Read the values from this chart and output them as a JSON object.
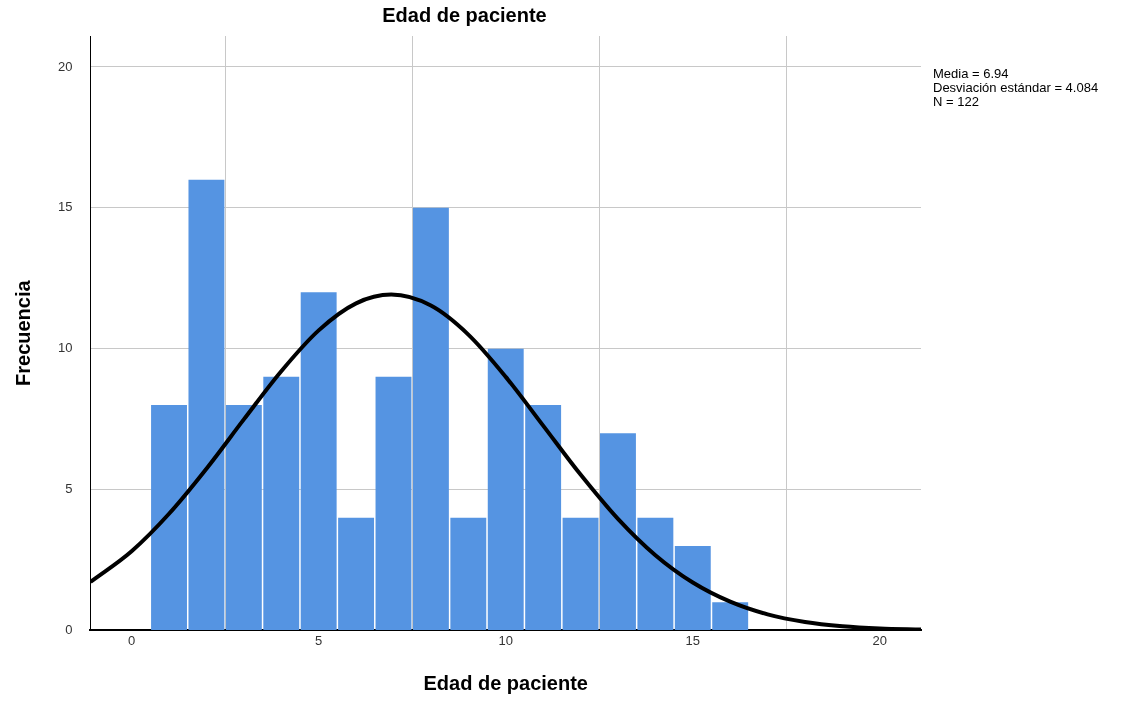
{
  "chart_data": {
    "type": "histogram",
    "title": "Edad de paciente",
    "xlabel": "Edad de paciente",
    "ylabel": "Frecuencia",
    "bins": [
      0.5,
      1.5,
      2.5,
      3.5,
      4.5,
      5.5,
      6.5,
      7.5,
      8.5,
      9.5,
      10.5,
      11.5,
      12.5,
      13.5,
      14.5,
      15.5,
      16.5
    ],
    "values": [
      8,
      16,
      8,
      9,
      12,
      4,
      9,
      15,
      4,
      10,
      8,
      4,
      7,
      4,
      3,
      1
    ],
    "color": "#5594e2",
    "series": [
      {
        "type": "line",
        "color": "#000000",
        "x": [
          -1.1,
          0,
          1,
          2,
          3,
          4,
          5,
          6,
          6.94,
          8,
          9,
          10,
          11,
          12,
          13,
          14,
          15,
          16,
          17,
          18,
          19,
          20,
          21.1
        ],
        "values": [
          1.72,
          2.81,
          4.14,
          5.74,
          7.49,
          9.2,
          10.65,
          11.61,
          11.92,
          11.53,
          10.5,
          9.0,
          7.27,
          5.53,
          3.96,
          2.67,
          1.7,
          1.02,
          0.57,
          0.3,
          0.15,
          0.07,
          0.03
        ]
      }
    ],
    "xlim": [
      -1.1,
      21.1
    ],
    "xticks": [
      0,
      5,
      10,
      15,
      20
    ],
    "ylim": [
      0,
      21.1
    ],
    "yticks": [
      0,
      5,
      10,
      15,
      20
    ],
    "grid": true,
    "legend": false,
    "annotations": [
      "Media = 6.94",
      "Desviación estándar = 4.084",
      "N = 122"
    ]
  }
}
